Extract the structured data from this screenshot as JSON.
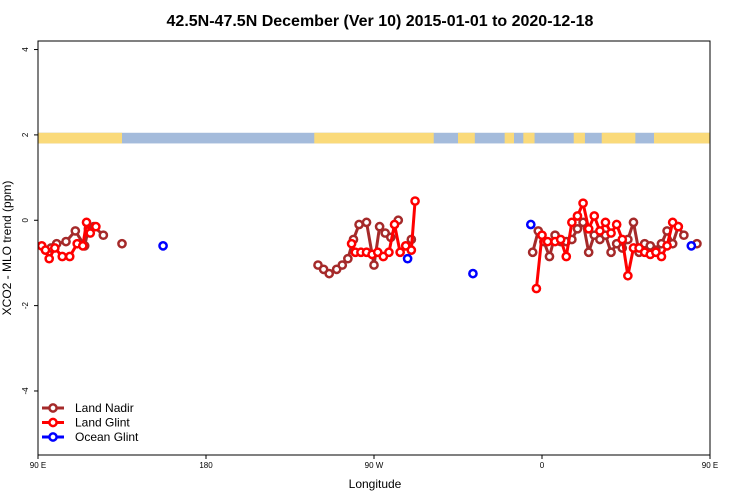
{
  "chart_data": {
    "type": "line",
    "title": "42.5N-47.5N December (Ver 10)   2015-01-01 to 2020-12-18",
    "xlabel": "Longitude",
    "ylabel": "XCO2 - MLO trend (ppm)",
    "xlim": [
      90,
      450
    ],
    "ylim": [
      -5.5,
      4.2
    ],
    "grid": false,
    "x_ticks": [
      {
        "value": 90,
        "label": "90 E"
      },
      {
        "value": 180,
        "label": "180"
      },
      {
        "value": 270,
        "label": "90 W"
      },
      {
        "value": 360,
        "label": "0"
      },
      {
        "value": 450,
        "label": "90 E"
      },
      {
        "value": 540,
        "label": "180"
      }
    ],
    "y_ticks": [
      {
        "value": 4,
        "label": "4"
      },
      {
        "value": 2,
        "label": "2"
      },
      {
        "value": 0,
        "label": "0"
      },
      {
        "value": -2,
        "label": "-2"
      },
      {
        "value": -4,
        "label": "-4"
      }
    ],
    "land_ocean_strip": {
      "y_range": [
        1.8,
        2.05
      ],
      "land_color": "#fada7a",
      "ocean_color": "#a4bbdb",
      "land_segments": [
        [
          90,
          135
        ],
        [
          238,
          302
        ],
        [
          315,
          324
        ],
        [
          340,
          345
        ],
        [
          350,
          356
        ],
        [
          377,
          383
        ],
        [
          392,
          410
        ],
        [
          420,
          460
        ],
        [
          470,
          478
        ],
        [
          488,
          493
        ]
      ]
    },
    "legend_position": "bottom-left",
    "series": [
      {
        "name": "Land Nadir",
        "color": "#a52a2a",
        "style": "line-points",
        "segments": [
          [
            [
              97,
              -0.65
            ],
            [
              100,
              -0.55
            ],
            [
              105,
              -0.5
            ],
            [
              110,
              -0.25
            ],
            [
              115,
              -0.6
            ],
            [
              117,
              -0.2
            ],
            [
              120,
              -0.15
            ],
            [
              125,
              -0.35
            ]
          ],
          [
            [
              135,
              -0.55
            ]
          ],
          [
            [
              240,
              -1.05
            ],
            [
              243,
              -1.15
            ],
            [
              246,
              -1.25
            ],
            [
              250,
              -1.15
            ],
            [
              253,
              -1.05
            ],
            [
              256,
              -0.9
            ],
            [
              259,
              -0.45
            ],
            [
              262,
              -0.1
            ],
            [
              266,
              -0.05
            ],
            [
              270,
              -1.05
            ],
            [
              273,
              -0.15
            ],
            [
              276,
              -0.3
            ],
            [
              279,
              -0.4
            ],
            [
              283,
              0.0
            ]
          ],
          [
            [
              290,
              -0.45
            ]
          ],
          [
            [
              355,
              -0.75
            ],
            [
              358,
              -0.25
            ],
            [
              361,
              -0.5
            ],
            [
              364,
              -0.85
            ],
            [
              367,
              -0.35
            ],
            [
              370,
              -0.5
            ],
            [
              373,
              -0.5
            ],
            [
              376,
              -0.45
            ],
            [
              379,
              -0.2
            ],
            [
              382,
              -0.05
            ],
            [
              385,
              -0.75
            ],
            [
              388,
              -0.35
            ],
            [
              391,
              -0.45
            ],
            [
              394,
              -0.35
            ],
            [
              397,
              -0.75
            ],
            [
              400,
              -0.55
            ],
            [
              403,
              -0.65
            ],
            [
              406,
              -0.45
            ],
            [
              409,
              -0.05
            ],
            [
              412,
              -0.75
            ],
            [
              415,
              -0.55
            ],
            [
              418,
              -0.6
            ],
            [
              421,
              -0.7
            ],
            [
              424,
              -0.55
            ],
            [
              427,
              -0.25
            ],
            [
              430,
              -0.55
            ],
            [
              433,
              -0.15
            ],
            [
              436,
              -0.35
            ]
          ],
          [
            [
              443,
              -0.55
            ]
          ]
        ]
      },
      {
        "name": "Land Glint",
        "color": "#ff0000",
        "style": "line-points",
        "segments": [
          [
            [
              92,
              -0.6
            ],
            [
              94,
              -0.7
            ],
            [
              96,
              -0.9
            ],
            [
              99,
              -0.65
            ],
            [
              103,
              -0.85
            ],
            [
              107,
              -0.85
            ],
            [
              111,
              -0.55
            ],
            [
              114,
              -0.6
            ],
            [
              116,
              -0.05
            ],
            [
              118,
              -0.3
            ],
            [
              121,
              -0.15
            ]
          ],
          [
            [
              258,
              -0.55
            ],
            [
              260,
              -0.75
            ],
            [
              263,
              -0.75
            ],
            [
              266,
              -0.75
            ],
            [
              269,
              -0.8
            ],
            [
              272,
              -0.75
            ],
            [
              275,
              -0.85
            ],
            [
              278,
              -0.75
            ],
            [
              281,
              -0.1
            ],
            [
              284,
              -0.75
            ],
            [
              287,
              -0.6
            ],
            [
              290,
              -0.7
            ],
            [
              292,
              0.45
            ]
          ],
          [
            [
              357,
              -1.6
            ],
            [
              360,
              -0.35
            ],
            [
              363,
              -0.5
            ],
            [
              367,
              -0.5
            ],
            [
              370,
              -0.45
            ],
            [
              373,
              -0.85
            ],
            [
              376,
              -0.05
            ],
            [
              379,
              0.1
            ],
            [
              382,
              0.4
            ],
            [
              385,
              -0.2
            ],
            [
              388,
              0.1
            ],
            [
              391,
              -0.25
            ],
            [
              394,
              -0.05
            ],
            [
              397,
              -0.3
            ],
            [
              400,
              -0.1
            ],
            [
              403,
              -0.45
            ],
            [
              406,
              -1.3
            ],
            [
              409,
              -0.65
            ],
            [
              412,
              -0.65
            ],
            [
              415,
              -0.75
            ],
            [
              418,
              -0.8
            ],
            [
              421,
              -0.75
            ],
            [
              424,
              -0.85
            ],
            [
              427,
              -0.6
            ],
            [
              430,
              -0.05
            ],
            [
              433,
              -0.15
            ]
          ]
        ]
      },
      {
        "name": "Ocean Glint",
        "color": "#0000ff",
        "style": "points",
        "segments": [
          [
            [
              157,
              -0.6
            ]
          ],
          [
            [
              288,
              -0.9
            ]
          ],
          [
            [
              323,
              -1.25
            ]
          ],
          [
            [
              354,
              -0.1
            ]
          ],
          [
            [
              440,
              -0.6
            ]
          ]
        ]
      }
    ]
  }
}
